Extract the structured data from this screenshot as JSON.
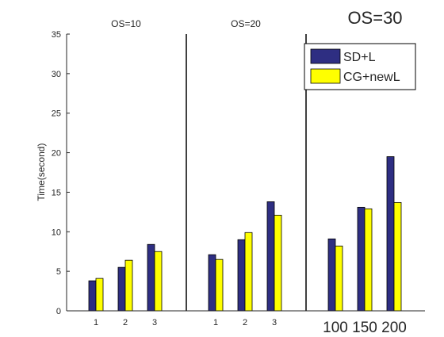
{
  "chart_data": {
    "type": "bar",
    "ylabel": "Time(second)",
    "ylim": [
      0,
      35
    ],
    "yticks": [
      0,
      5,
      10,
      15,
      20,
      25,
      30,
      35
    ],
    "grid": false,
    "legend": {
      "placement": "top-right",
      "entries": [
        "SD+L",
        "CG+newL"
      ]
    },
    "colors": {
      "SD+L": "#2e2e82",
      "CG+newL": "#ffff00",
      "axis": "#262626",
      "text": "#262626"
    },
    "panels": [
      {
        "title": "OS=10",
        "categories": [
          "1",
          "2",
          "3"
        ],
        "series": [
          {
            "name": "SD+L",
            "values": [
              3.8,
              5.5,
              8.4
            ]
          },
          {
            "name": "CG+newL",
            "values": [
              4.1,
              6.4,
              7.5
            ]
          }
        ]
      },
      {
        "title": "OS=20",
        "categories": [
          "1",
          "2",
          "3"
        ],
        "series": [
          {
            "name": "SD+L",
            "values": [
              7.1,
              9.0,
              13.8
            ]
          },
          {
            "name": "CG+newL",
            "values": [
              6.5,
              9.9,
              12.1
            ]
          }
        ]
      },
      {
        "title": "OS=30",
        "categories": [
          "100",
          "150",
          "200"
        ],
        "series": [
          {
            "name": "SD+L",
            "values": [
              9.1,
              13.1,
              19.5
            ]
          },
          {
            "name": "CG+newL",
            "values": [
              8.2,
              12.9,
              13.7
            ]
          }
        ]
      }
    ]
  }
}
